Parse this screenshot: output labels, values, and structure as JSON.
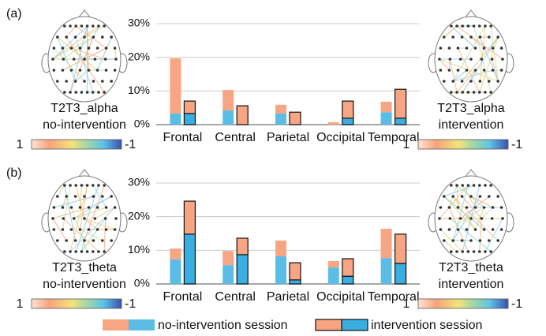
{
  "chart_data": [
    {
      "type": "bar",
      "categories": [
        "Frontal",
        "Central",
        "Parietal",
        "Occipital",
        "Temporal"
      ],
      "ylim": [
        0,
        30
      ],
      "yticks": [
        {
          "value": 0,
          "label": "0%"
        },
        {
          "value": 10,
          "label": "10%"
        },
        {
          "value": 20,
          "label": "20%"
        },
        {
          "value": 30,
          "label": "30%"
        }
      ],
      "grid": true,
      "series": [
        {
          "segments": [
            [
              3.3,
              4.2,
              3.3,
              0,
              3.7
            ],
            [
              16.4,
              6.1,
              2.6,
              0.7,
              3.1
            ]
          ]
        },
        {
          "segments": [
            [
              3.3,
              0,
              0,
              1.9,
              1.9
            ],
            [
              3.7,
              5.6,
              3.7,
              5.1,
              8.6
            ]
          ]
        }
      ]
    },
    {
      "type": "bar",
      "categories": [
        "Frontal",
        "Central",
        "Parietal",
        "Occipital",
        "Temporal"
      ],
      "ylim": [
        0,
        30
      ],
      "yticks": [
        {
          "value": 0,
          "label": "0%"
        },
        {
          "value": 10,
          "label": "10%"
        },
        {
          "value": 20,
          "label": "20%"
        },
        {
          "value": 30,
          "label": "30%"
        }
      ],
      "grid": true,
      "series": [
        {
          "segments": [
            [
              7.3,
              5.6,
              8.2,
              4.9,
              7.7
            ],
            [
              3.2,
              4.2,
              4.7,
              1.9,
              8.7
            ]
          ]
        },
        {
          "segments": [
            [
              14.8,
              8.7,
              1.2,
              2.3,
              6.1
            ],
            [
              9.8,
              4.9,
              5.1,
              5.2,
              8.7
            ]
          ]
        }
      ]
    }
  ],
  "legend": [
    {
      "name": "no-intervention session",
      "colors": [
        "#5bbde6",
        "#f7a583"
      ],
      "outline": false
    },
    {
      "name": "intervention session",
      "colors": [
        "#3aaee0",
        "#f7a583"
      ],
      "outline": true
    }
  ],
  "panels": [
    {
      "label": "(a)",
      "maps": [
        {
          "lines": [
            "T2T3_alpha",
            "no-intervention"
          ],
          "colorbar": [
            1,
            -1
          ]
        },
        {
          "lines": [
            "T2T3_alpha",
            "intervention"
          ],
          "colorbar": [
            1,
            -1
          ]
        }
      ]
    },
    {
      "label": "(b)",
      "maps": [
        {
          "lines": [
            "T2T3_theta",
            "no-intervention"
          ],
          "colorbar": [
            1,
            -1
          ]
        },
        {
          "lines": [
            "T2T3_theta",
            "intervention"
          ],
          "colorbar": [
            1,
            -1
          ]
        }
      ]
    }
  ]
}
